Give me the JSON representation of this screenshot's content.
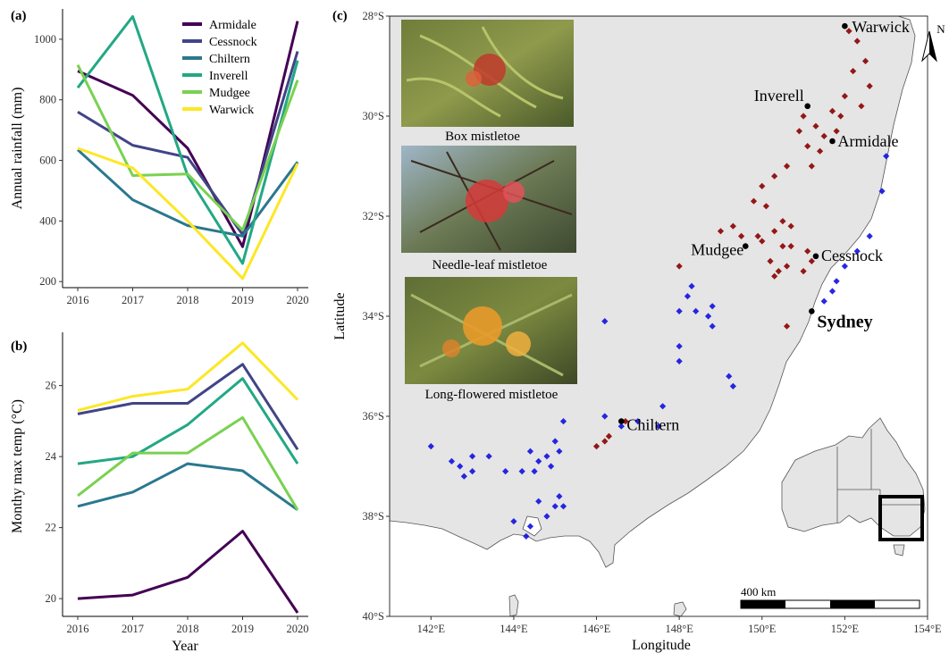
{
  "chart_data": [
    {
      "panel": "(a)",
      "type": "line",
      "x": [
        2016,
        2017,
        2018,
        2019,
        2020
      ],
      "xlabel": "",
      "ylabel": "Annual rainfall (mm)",
      "ylim": [
        180,
        1100
      ],
      "yticks": [
        200,
        400,
        600,
        800,
        1000
      ],
      "xticks": [
        "2016",
        "2017",
        "2018",
        "2019",
        "2020"
      ],
      "legend": "top-right",
      "series": [
        {
          "name": "Armidale",
          "color": "#440154",
          "values": [
            895,
            815,
            640,
            315,
            1060
          ]
        },
        {
          "name": "Cessnock",
          "color": "#414487",
          "values": [
            760,
            650,
            610,
            355,
            960
          ]
        },
        {
          "name": "Chiltern",
          "color": "#2a788e",
          "values": [
            635,
            470,
            385,
            350,
            595
          ]
        },
        {
          "name": "Inverell",
          "color": "#22a884",
          "values": [
            840,
            1075,
            550,
            260,
            930
          ]
        },
        {
          "name": "Mudgee",
          "color": "#7ad151",
          "values": [
            915,
            550,
            555,
            370,
            865
          ]
        },
        {
          "name": "Warwick",
          "color": "#fde725",
          "values": [
            640,
            575,
            400,
            210,
            590
          ]
        }
      ]
    },
    {
      "panel": "(b)",
      "type": "line",
      "x": [
        2016,
        2017,
        2018,
        2019,
        2020
      ],
      "xlabel": "Year",
      "ylabel": "Monthy max temp (°C)",
      "ylim": [
        19.5,
        27.5
      ],
      "yticks": [
        20,
        22,
        24,
        26
      ],
      "xticks": [
        "2016",
        "2017",
        "2018",
        "2019",
        "2020"
      ],
      "series": [
        {
          "name": "Armidale",
          "color": "#440154",
          "values": [
            20.0,
            20.1,
            20.6,
            21.9,
            19.6
          ]
        },
        {
          "name": "Cessnock",
          "color": "#414487",
          "values": [
            25.2,
            25.5,
            25.5,
            26.6,
            24.2
          ]
        },
        {
          "name": "Chiltern",
          "color": "#2a788e",
          "values": [
            22.6,
            23.0,
            23.8,
            23.6,
            22.5
          ]
        },
        {
          "name": "Inverell",
          "color": "#22a884",
          "values": [
            23.8,
            24.0,
            24.9,
            26.2,
            23.8
          ]
        },
        {
          "name": "Mudgee",
          "color": "#7ad151",
          "values": [
            22.9,
            24.1,
            24.1,
            25.1,
            22.5
          ]
        },
        {
          "name": "Warwick",
          "color": "#fde725",
          "values": [
            25.3,
            25.7,
            25.9,
            27.2,
            25.6
          ]
        }
      ]
    },
    {
      "panel": "(c)",
      "type": "scatter",
      "xlabel": "Longitude",
      "ylabel": "Latitude",
      "xlim": [
        141.0,
        154.0
      ],
      "ylim": [
        -40.0,
        -28.0
      ],
      "xticks": [
        {
          "v": 142,
          "label": "142°E"
        },
        {
          "v": 144,
          "label": "144°E"
        },
        {
          "v": 146,
          "label": "146°E"
        },
        {
          "v": 148,
          "label": "148°E"
        },
        {
          "v": 150,
          "label": "150°E"
        },
        {
          "v": 152,
          "label": "152°E"
        },
        {
          "v": 154,
          "label": "154°E"
        }
      ],
      "yticks": [
        {
          "v": -28,
          "label": "28°S"
        },
        {
          "v": -30,
          "label": "30°S"
        },
        {
          "v": -32,
          "label": "32°S"
        },
        {
          "v": -34,
          "label": "34°S"
        },
        {
          "v": -36,
          "label": "36°S"
        },
        {
          "v": -38,
          "label": "38°S"
        },
        {
          "v": -40,
          "label": "40°S"
        }
      ],
      "towns": [
        {
          "name": "Warwick",
          "lon": 152.0,
          "lat": -28.2,
          "bold": false
        },
        {
          "name": "Inverell",
          "lon": 151.1,
          "lat": -29.8,
          "bold": false
        },
        {
          "name": "Armidale",
          "lon": 151.7,
          "lat": -30.5,
          "bold": false
        },
        {
          "name": "Mudgee",
          "lon": 149.6,
          "lat": -32.6,
          "bold": false
        },
        {
          "name": "Cessnock",
          "lon": 151.3,
          "lat": -32.8,
          "bold": false
        },
        {
          "name": "Sydney",
          "lon": 151.2,
          "lat": -33.9,
          "bold": true
        },
        {
          "name": "Chiltern",
          "lon": 146.6,
          "lat": -36.1,
          "bold": false
        }
      ],
      "photo_captions": [
        "Box mistletoe",
        "Needle-leaf mistletoe",
        "Long-flowered mistletoe"
      ],
      "scale_bar_label": "400 km",
      "north_label": "N",
      "point_colors": {
        "red": "#8b0000",
        "blue": "#1010e0"
      },
      "red_points": [
        [
          152.1,
          -28.3
        ],
        [
          152.3,
          -28.5
        ],
        [
          152.5,
          -28.9
        ],
        [
          152.2,
          -29.1
        ],
        [
          152.6,
          -29.4
        ],
        [
          152.0,
          -29.6
        ],
        [
          152.4,
          -29.8
        ],
        [
          151.9,
          -30.0
        ],
        [
          151.3,
          -30.2
        ],
        [
          151.5,
          -30.4
        ],
        [
          151.8,
          -30.3
        ],
        [
          151.1,
          -30.6
        ],
        [
          151.0,
          -30.0
        ],
        [
          151.4,
          -30.7
        ],
        [
          150.9,
          -30.3
        ],
        [
          151.7,
          -29.9
        ],
        [
          151.2,
          -31.0
        ],
        [
          150.6,
          -31.0
        ],
        [
          150.3,
          -31.2
        ],
        [
          150.0,
          -31.4
        ],
        [
          149.8,
          -31.7
        ],
        [
          150.1,
          -31.8
        ],
        [
          149.3,
          -32.2
        ],
        [
          149.0,
          -32.3
        ],
        [
          149.5,
          -32.4
        ],
        [
          149.9,
          -32.4
        ],
        [
          150.0,
          -32.5
        ],
        [
          150.3,
          -32.3
        ],
        [
          150.5,
          -32.6
        ],
        [
          150.7,
          -32.6
        ],
        [
          150.2,
          -32.9
        ],
        [
          150.4,
          -33.1
        ],
        [
          150.6,
          -33.0
        ],
        [
          150.3,
          -33.2
        ],
        [
          150.7,
          -32.2
        ],
        [
          150.5,
          -32.1
        ],
        [
          151.1,
          -32.7
        ],
        [
          151.2,
          -32.9
        ],
        [
          151.0,
          -33.1
        ],
        [
          150.6,
          -34.2
        ],
        [
          146.3,
          -36.4
        ],
        [
          146.0,
          -36.6
        ],
        [
          146.2,
          -36.5
        ],
        [
          146.7,
          -36.1
        ],
        [
          148.0,
          -33.0
        ]
      ],
      "blue_points": [
        [
          153.0,
          -30.8
        ],
        [
          152.9,
          -31.5
        ],
        [
          152.6,
          -32.4
        ],
        [
          152.3,
          -32.7
        ],
        [
          152.0,
          -33.0
        ],
        [
          151.8,
          -33.3
        ],
        [
          151.7,
          -33.5
        ],
        [
          151.5,
          -33.7
        ],
        [
          148.3,
          -33.4
        ],
        [
          148.2,
          -33.6
        ],
        [
          148.4,
          -33.9
        ],
        [
          148.0,
          -33.9
        ],
        [
          148.8,
          -33.8
        ],
        [
          148.7,
          -34.0
        ],
        [
          148.8,
          -34.2
        ],
        [
          148.0,
          -34.6
        ],
        [
          148.0,
          -34.9
        ],
        [
          149.2,
          -35.2
        ],
        [
          149.3,
          -35.4
        ],
        [
          147.6,
          -35.8
        ],
        [
          147.5,
          -36.2
        ],
        [
          147.0,
          -36.1
        ],
        [
          146.6,
          -36.2
        ],
        [
          146.2,
          -36.0
        ],
        [
          145.2,
          -36.1
        ],
        [
          145.0,
          -36.5
        ],
        [
          144.4,
          -36.7
        ],
        [
          144.6,
          -36.9
        ],
        [
          144.8,
          -36.8
        ],
        [
          145.1,
          -36.7
        ],
        [
          144.9,
          -37.0
        ],
        [
          144.5,
          -37.1
        ],
        [
          144.2,
          -37.1
        ],
        [
          143.8,
          -37.1
        ],
        [
          143.4,
          -36.8
        ],
        [
          143.0,
          -36.8
        ],
        [
          143.0,
          -37.1
        ],
        [
          142.7,
          -37.0
        ],
        [
          142.5,
          -36.9
        ],
        [
          142.0,
          -36.6
        ],
        [
          142.8,
          -37.2
        ],
        [
          144.6,
          -37.7
        ],
        [
          145.0,
          -37.8
        ],
        [
          145.2,
          -37.8
        ],
        [
          144.8,
          -38.0
        ],
        [
          144.4,
          -38.2
        ],
        [
          144.3,
          -38.4
        ],
        [
          144.0,
          -38.1
        ],
        [
          145.1,
          -37.6
        ],
        [
          146.2,
          -34.1
        ]
      ]
    }
  ],
  "labels": {
    "panel_a": "(a)",
    "panel_b": "(b)",
    "panel_c": "(c)",
    "xlabel_b": "Year",
    "ylabel_a": "Annual rainfall (mm)",
    "ylabel_b": "Monthy max temp (°C)",
    "xlabel_c": "Longitude",
    "ylabel_c": "Latitude"
  }
}
